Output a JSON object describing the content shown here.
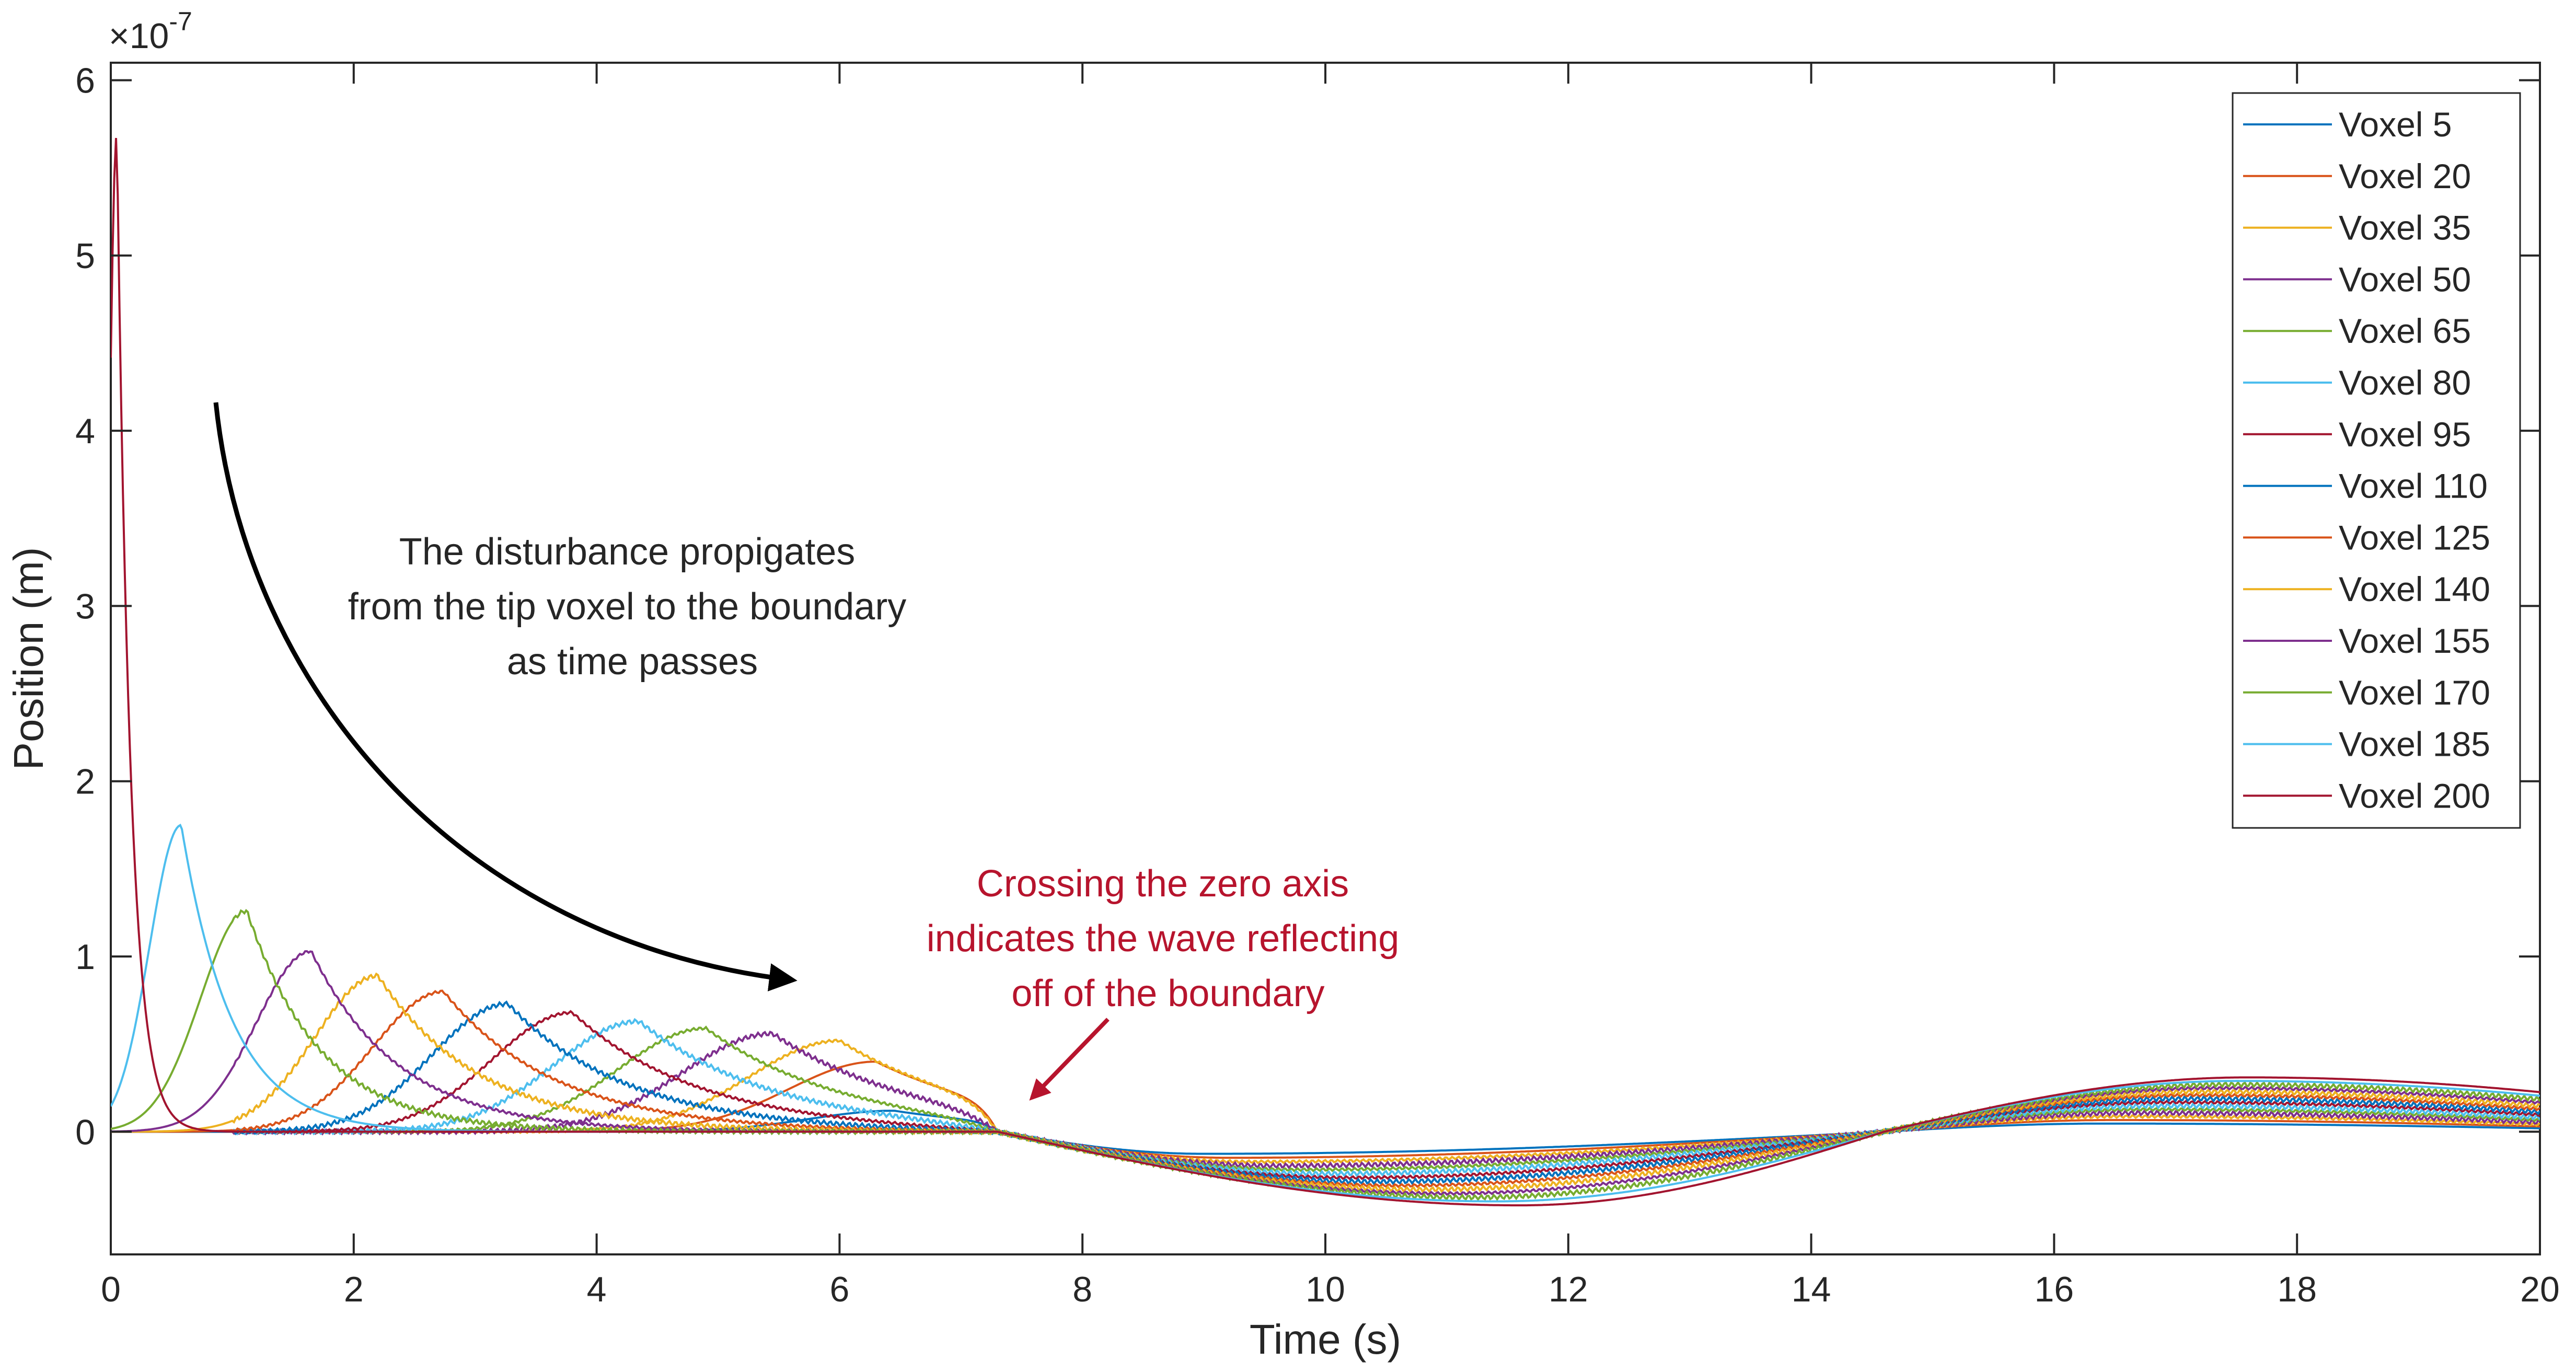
{
  "chart_data": {
    "type": "line",
    "title": "",
    "xlabel": "Time (s)",
    "ylabel": "Position (m)",
    "y_exponent_label": "×10",
    "y_exponent_power": "-7",
    "y_scale": 1e-07,
    "xlim": [
      0,
      20
    ],
    "ylim": [
      -0.7,
      6.1
    ],
    "x_ticks": [
      0,
      2,
      4,
      6,
      8,
      10,
      12,
      14,
      16,
      18,
      20
    ],
    "x_tick_labels": [
      "0",
      "2",
      "4",
      "6",
      "8",
      "10",
      "12",
      "14",
      "16",
      "18",
      "20"
    ],
    "y_ticks": [
      0,
      1,
      2,
      3,
      4,
      5,
      6
    ],
    "y_tick_labels": [
      "0",
      "1",
      "2",
      "3",
      "4",
      "5",
      "6"
    ],
    "grid": false,
    "legend_position": "top-right",
    "series": [
      {
        "name": "Voxel 5",
        "color": "#0072BD",
        "peak_t": 6.45,
        "peak_v": 0.12,
        "width": 0.7
      },
      {
        "name": "Voxel 20",
        "color": "#D95319",
        "peak_t": 6.3,
        "peak_v": 0.4,
        "width": 0.72
      },
      {
        "name": "Voxel 35",
        "color": "#EDB120",
        "peak_t": 6.0,
        "peak_v": 0.52,
        "width": 0.74
      },
      {
        "name": "Voxel 50",
        "color": "#7E2F8E",
        "peak_t": 5.45,
        "peak_v": 0.56,
        "width": 0.74
      },
      {
        "name": "Voxel 65",
        "color": "#77AC30",
        "peak_t": 4.9,
        "peak_v": 0.59,
        "width": 0.72
      },
      {
        "name": "Voxel 80",
        "color": "#4DBEEE",
        "peak_t": 4.35,
        "peak_v": 0.63,
        "width": 0.7
      },
      {
        "name": "Voxel 95",
        "color": "#A2142F",
        "peak_t": 3.8,
        "peak_v": 0.68,
        "width": 0.66
      },
      {
        "name": "Voxel 110",
        "color": "#0072BD",
        "peak_t": 3.27,
        "peak_v": 0.73,
        "width": 0.62
      },
      {
        "name": "Voxel 125",
        "color": "#D95319",
        "peak_t": 2.74,
        "peak_v": 0.8,
        "width": 0.58
      },
      {
        "name": "Voxel 140",
        "color": "#EDB120",
        "peak_t": 2.2,
        "peak_v": 0.89,
        "width": 0.52
      },
      {
        "name": "Voxel 155",
        "color": "#7E2F8E",
        "peak_t": 1.65,
        "peak_v": 1.03,
        "width": 0.45
      },
      {
        "name": "Voxel 170",
        "color": "#77AC30",
        "peak_t": 1.12,
        "peak_v": 1.26,
        "width": 0.38
      },
      {
        "name": "Voxel 185",
        "color": "#4DBEEE",
        "peak_t": 0.58,
        "peak_v": 1.75,
        "width": 0.26
      },
      {
        "name": "Voxel 200",
        "color": "#A2142F",
        "peak_t": 0.05,
        "peak_v": 5.7,
        "width": 0.07
      }
    ],
    "annotations": [
      {
        "lines": [
          "The disturbance propigates",
          "from the tip voxel to the boundary",
          "as time passes"
        ],
        "color": "#000000"
      },
      {
        "lines": [
          "Crossing the zero axis",
          "indicates the wave reflecting",
          "off of the boundary"
        ],
        "color": "#B7142D"
      }
    ]
  }
}
